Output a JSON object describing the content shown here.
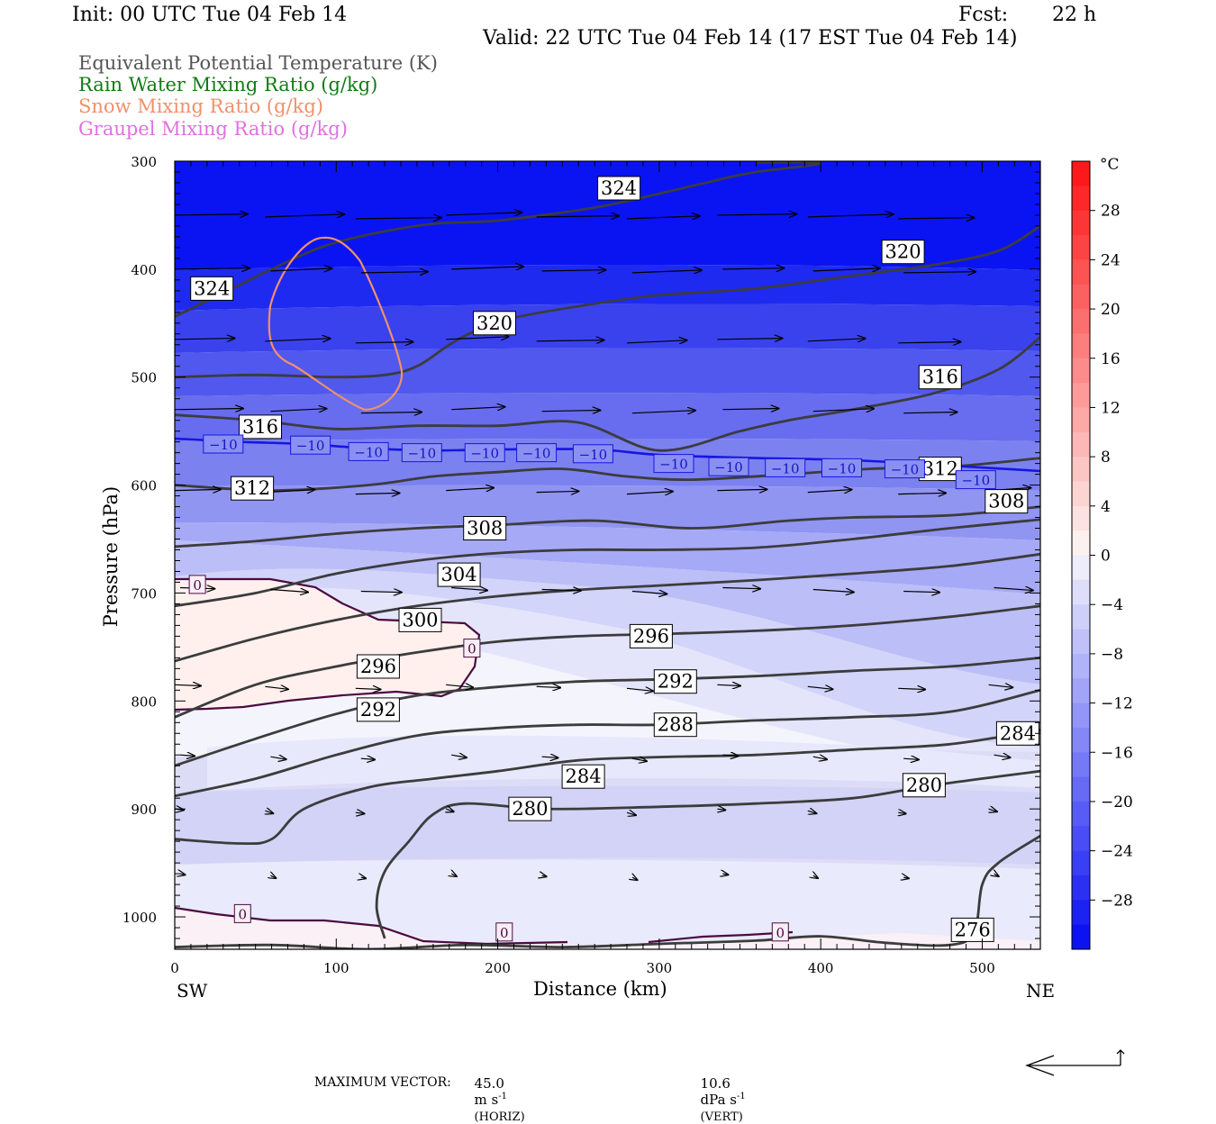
{
  "header": {
    "init": "Init: 00 UTC Tue 04 Feb 14",
    "fcst_label": "Fcst:",
    "fcst_value": "22 h",
    "valid": "Valid: 22 UTC Tue 04 Feb 14 (17 EST Tue 04 Feb 14)"
  },
  "legend": [
    {
      "text": "Equivalent Potential Temperature (K)",
      "color": "#555555"
    },
    {
      "text": "Rain Water Mixing Ratio (g/kg)",
      "color": "#137a13"
    },
    {
      "text": "Snow Mixing Ratio (g/kg)",
      "color": "#f0906a"
    },
    {
      "text": "Graupel Mixing Ratio (g/kg)",
      "color": "#e070e0"
    }
  ],
  "chart_data": {
    "type": "cross-section",
    "xlabel": "Distance (km)",
    "ylabel": "Pressure (hPa)",
    "xlim": [
      0,
      536
    ],
    "ylim": [
      1030,
      300
    ],
    "x_ticks": [
      0,
      100,
      200,
      300,
      400,
      500
    ],
    "y_ticks": [
      300,
      400,
      500,
      600,
      700,
      800,
      900,
      1000
    ],
    "endpoints": {
      "left": "SW",
      "right": "NE"
    },
    "theta_e_contours": [
      {
        "value": 324,
        "points": [
          [
            0,
            444
          ],
          [
            30,
            422
          ],
          [
            60,
            400
          ],
          [
            90,
            380
          ],
          [
            120,
            368
          ],
          [
            160,
            358
          ],
          [
            200,
            355
          ],
          [
            260,
            343
          ],
          [
            300,
            330
          ],
          [
            340,
            316
          ],
          [
            360,
            310
          ],
          [
            400,
            302
          ],
          [
            360,
            301
          ]
        ]
      },
      {
        "value": 320,
        "points": [
          [
            0,
            500
          ],
          [
            50,
            498
          ],
          [
            100,
            500
          ],
          [
            130,
            498
          ],
          [
            150,
            490
          ],
          [
            170,
            470
          ],
          [
            185,
            458
          ],
          [
            210,
            445
          ],
          [
            260,
            432
          ],
          [
            300,
            424
          ],
          [
            360,
            418
          ],
          [
            420,
            406
          ],
          [
            470,
            396
          ],
          [
            510,
            383
          ],
          [
            536,
            360
          ]
        ]
      },
      {
        "value": 316,
        "points": [
          [
            0,
            535
          ],
          [
            50,
            540
          ],
          [
            100,
            548
          ],
          [
            150,
            545
          ],
          [
            200,
            545
          ],
          [
            250,
            542
          ],
          [
            300,
            568
          ],
          [
            350,
            550
          ],
          [
            380,
            540
          ],
          [
            420,
            530
          ],
          [
            470,
            515
          ],
          [
            510,
            493
          ],
          [
            536,
            463
          ]
        ]
      },
      {
        "value": 312,
        "points": [
          [
            0,
            600
          ],
          [
            60,
            605
          ],
          [
            120,
            600
          ],
          [
            160,
            592
          ],
          [
            200,
            588
          ],
          [
            240,
            585
          ],
          [
            280,
            592
          ],
          [
            320,
            595
          ],
          [
            380,
            590
          ],
          [
            430,
            585
          ],
          [
            480,
            583
          ],
          [
            536,
            575
          ]
        ]
      },
      {
        "value": 308,
        "points": [
          [
            0,
            657
          ],
          [
            50,
            652
          ],
          [
            100,
            645
          ],
          [
            150,
            640
          ],
          [
            200,
            637
          ],
          [
            260,
            633
          ],
          [
            320,
            640
          ],
          [
            380,
            633
          ],
          [
            420,
            630
          ],
          [
            480,
            628
          ],
          [
            536,
            620
          ]
        ]
      },
      {
        "value": 304,
        "points": [
          [
            0,
            712
          ],
          [
            50,
            700
          ],
          [
            100,
            682
          ],
          [
            150,
            670
          ],
          [
            200,
            663
          ],
          [
            250,
            660
          ],
          [
            300,
            660
          ],
          [
            360,
            658
          ],
          [
            420,
            650
          ],
          [
            480,
            640
          ],
          [
            536,
            632
          ]
        ]
      },
      {
        "value": 300,
        "points": [
          [
            0,
            763
          ],
          [
            50,
            742
          ],
          [
            100,
            725
          ],
          [
            150,
            712
          ],
          [
            200,
            703
          ],
          [
            250,
            697
          ],
          [
            300,
            693
          ],
          [
            360,
            688
          ],
          [
            420,
            682
          ],
          [
            480,
            675
          ],
          [
            536,
            664
          ]
        ]
      },
      {
        "value": 296,
        "points": [
          [
            0,
            815
          ],
          [
            50,
            785
          ],
          [
            100,
            768
          ],
          [
            150,
            755
          ],
          [
            200,
            745
          ],
          [
            250,
            740
          ],
          [
            300,
            738
          ],
          [
            360,
            735
          ],
          [
            420,
            730
          ],
          [
            480,
            722
          ],
          [
            536,
            712
          ]
        ]
      },
      {
        "value": 292,
        "points": [
          [
            0,
            860
          ],
          [
            50,
            835
          ],
          [
            100,
            812
          ],
          [
            150,
            795
          ],
          [
            200,
            787
          ],
          [
            250,
            782
          ],
          [
            300,
            780
          ],
          [
            360,
            777
          ],
          [
            420,
            772
          ],
          [
            480,
            768
          ],
          [
            536,
            760
          ]
        ]
      },
      {
        "value": 288,
        "points": [
          [
            0,
            888
          ],
          [
            50,
            872
          ],
          [
            100,
            850
          ],
          [
            150,
            832
          ],
          [
            200,
            825
          ],
          [
            250,
            822
          ],
          [
            300,
            822
          ],
          [
            360,
            818
          ],
          [
            420,
            815
          ],
          [
            480,
            810
          ],
          [
            536,
            790
          ]
        ]
      },
      {
        "value": 284,
        "points": [
          [
            0,
            928
          ],
          [
            40,
            932
          ],
          [
            60,
            928
          ],
          [
            80,
            900
          ],
          [
            120,
            880
          ],
          [
            160,
            872
          ],
          [
            200,
            865
          ],
          [
            250,
            855
          ],
          [
            300,
            852
          ],
          [
            360,
            850
          ],
          [
            420,
            845
          ],
          [
            480,
            840
          ],
          [
            536,
            827
          ]
        ]
      },
      {
        "value": 280,
        "points": [
          [
            130,
            1020
          ],
          [
            125,
            990
          ],
          [
            130,
            958
          ],
          [
            145,
            930
          ],
          [
            160,
            905
          ],
          [
            180,
            895
          ],
          [
            230,
            900
          ],
          [
            300,
            898
          ],
          [
            360,
            895
          ],
          [
            420,
            890
          ],
          [
            470,
            878
          ],
          [
            536,
            865
          ]
        ]
      },
      {
        "value": 276,
        "points": [
          [
            0,
            1028
          ],
          [
            60,
            1026
          ],
          [
            120,
            1030
          ],
          [
            180,
            1026
          ],
          [
            240,
            1028
          ],
          [
            300,
            1025
          ],
          [
            360,
            1022
          ],
          [
            400,
            1018
          ],
          [
            440,
            1024
          ],
          [
            480,
            1026
          ],
          [
            495,
            1014
          ],
          [
            500,
            970
          ],
          [
            510,
            950
          ],
          [
            536,
            925
          ]
        ]
      }
    ],
    "theta_e_labels": [
      {
        "text": "324",
        "x": 275,
        "p": 325
      },
      {
        "text": "324",
        "x": 23,
        "p": 418
      },
      {
        "text": "320",
        "x": 198,
        "p": 450
      },
      {
        "text": "320",
        "x": 451,
        "p": 384
      },
      {
        "text": "316",
        "x": 53,
        "p": 546
      },
      {
        "text": "316",
        "x": 474,
        "p": 500
      },
      {
        "text": "312",
        "x": 48,
        "p": 603
      },
      {
        "text": "312",
        "x": 474,
        "p": 585
      },
      {
        "text": "308",
        "x": 192,
        "p": 640
      },
      {
        "text": "308",
        "x": 515,
        "p": 615
      },
      {
        "text": "304",
        "x": 176,
        "p": 683
      },
      {
        "text": "300",
        "x": 152,
        "p": 725
      },
      {
        "text": "296",
        "x": 126,
        "p": 768
      },
      {
        "text": "296",
        "x": 295,
        "p": 740
      },
      {
        "text": "292",
        "x": 126,
        "p": 808
      },
      {
        "text": "292",
        "x": 310,
        "p": 782
      },
      {
        "text": "288",
        "x": 310,
        "p": 822
      },
      {
        "text": "284",
        "x": 253,
        "p": 870
      },
      {
        "text": "284",
        "x": 522,
        "p": 830
      },
      {
        "text": "280",
        "x": 220,
        "p": 900
      },
      {
        "text": "280",
        "x": 464,
        "p": 878
      },
      {
        "text": "276",
        "x": 494,
        "p": 1012
      }
    ],
    "isotherm_minus10": {
      "value": -10,
      "points": [
        [
          0,
          557
        ],
        [
          40,
          560
        ],
        [
          80,
          562
        ],
        [
          120,
          566
        ],
        [
          160,
          568
        ],
        [
          200,
          567
        ],
        [
          260,
          567
        ],
        [
          300,
          572
        ],
        [
          360,
          575
        ],
        [
          420,
          577
        ],
        [
          480,
          582
        ],
        [
          536,
          587
        ]
      ],
      "labels": [
        {
          "x": 30,
          "p": 562
        },
        [
          1,
          1
        ],
        {
          "x": 84,
          "p": 563
        },
        {
          "x": 120,
          "p": 569
        },
        {
          "x": 153,
          "p": 570
        },
        {
          "x": 192,
          "p": 570
        },
        {
          "x": 224,
          "p": 570
        },
        {
          "x": 259,
          "p": 571
        },
        {
          "x": 309,
          "p": 580
        },
        {
          "x": 343,
          "p": 583
        },
        {
          "x": 378,
          "p": 584
        },
        {
          "x": 413,
          "p": 584
        },
        {
          "x": 452,
          "p": 585
        },
        {
          "x": 496,
          "p": 595
        }
      ]
    },
    "zero_contour_labels": [
      {
        "x": 14,
        "p": 692
      },
      {
        "x": 184,
        "p": 751
      },
      {
        "x": 42,
        "p": 997
      },
      {
        "x": 204,
        "p": 1014
      },
      {
        "x": 375,
        "p": 1014
      }
    ],
    "colorbar": {
      "unit": "°C",
      "labels": [
        "28",
        "24",
        "20",
        "16",
        "12",
        "8",
        "4",
        "0",
        "-4",
        "-8",
        "-12",
        "-16",
        "-20",
        "-24",
        "-28"
      ]
    },
    "footer": {
      "max_vector": "MAXIMUM VECTOR:",
      "horiz_value": "45.0",
      "horiz_unit": "m s",
      "horiz_tag": "(HORIZ)",
      "vert_value": "10.6",
      "vert_unit": "dPa s",
      "vert_tag": "(VERT)",
      "exponent": "-1"
    }
  }
}
